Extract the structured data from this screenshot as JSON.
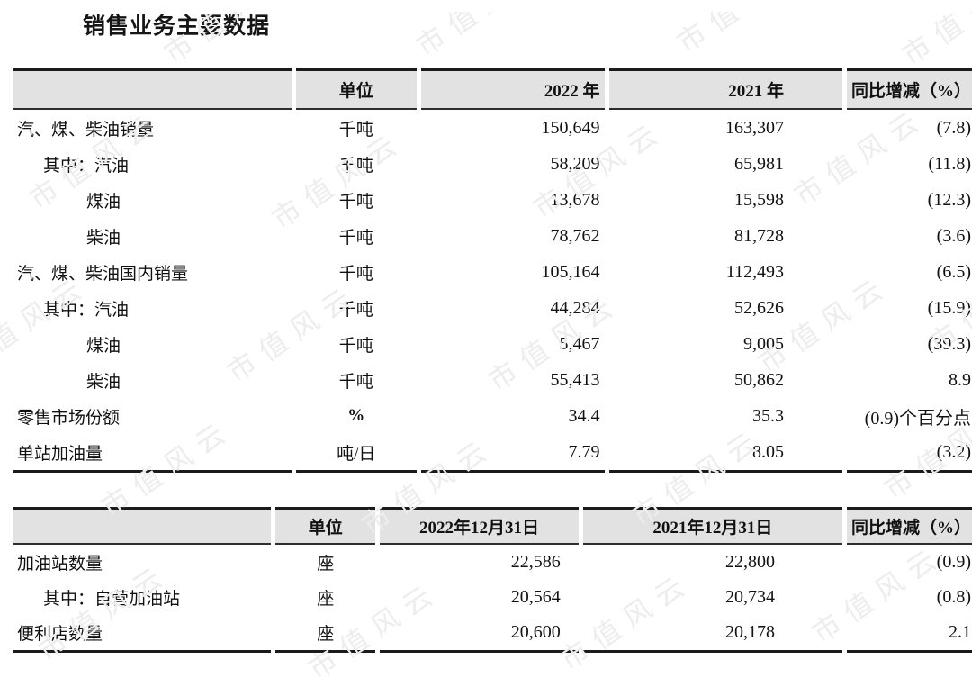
{
  "title": "销售业务主要数据",
  "watermark": {
    "text": "市值风云",
    "color": "#ededed"
  },
  "colors": {
    "header_bg": "#e2e2e2",
    "border": "#1b1b1b"
  },
  "table1": {
    "headers": [
      "",
      "单位",
      "2022 年",
      "2021 年",
      "同比增减（%）"
    ],
    "rows": [
      {
        "label": "汽、煤、柴油销量",
        "indent": 0,
        "unit": "千吨",
        "unit_bold": false,
        "values": [
          "150,649",
          "163,307",
          "(7.8)"
        ]
      },
      {
        "label": "其中：汽油",
        "indent": 1,
        "unit": "千吨",
        "unit_bold": false,
        "values": [
          "58,209",
          "65,981",
          "(11.8)"
        ]
      },
      {
        "label": "煤油",
        "indent": 2,
        "unit": "千吨",
        "unit_bold": false,
        "values": [
          "13,678",
          "15,598",
          "(12.3)"
        ]
      },
      {
        "label": "柴油",
        "indent": 2,
        "unit": "千吨",
        "unit_bold": false,
        "values": [
          "78,762",
          "81,728",
          "(3.6)"
        ]
      },
      {
        "label": "汽、煤、柴油国内销量",
        "indent": 0,
        "unit": "千吨",
        "unit_bold": false,
        "values": [
          "105,164",
          "112,493",
          "(6.5)"
        ]
      },
      {
        "label": "其中：汽油",
        "indent": 1,
        "unit": "千吨",
        "unit_bold": false,
        "values": [
          "44,284",
          "52,626",
          "(15.9)"
        ]
      },
      {
        "label": "煤油",
        "indent": 2,
        "unit": "千吨",
        "unit_bold": false,
        "values": [
          "5,467",
          "9,005",
          "(39.3)"
        ]
      },
      {
        "label": "柴油",
        "indent": 2,
        "unit": "千吨",
        "unit_bold": false,
        "values": [
          "55,413",
          "50,862",
          "8.9"
        ]
      },
      {
        "label": "零售市场份额",
        "indent": 0,
        "unit": "%",
        "unit_bold": true,
        "values": [
          "34.4",
          "35.3",
          "(0.9)个百分点"
        ]
      },
      {
        "label": "单站加油量",
        "indent": 0,
        "unit": "吨/日",
        "unit_bold": false,
        "values": [
          "7.79",
          "8.05",
          "(3.2)"
        ]
      }
    ]
  },
  "table2": {
    "headers": [
      "",
      "单位",
      "2022年12月31日",
      "2021年12月31日",
      "同比增减（%）"
    ],
    "rows": [
      {
        "label": "加油站数量",
        "indent": 0,
        "unit": "座",
        "unit_bold": false,
        "values": [
          "22,586",
          "22,800",
          "(0.9)"
        ]
      },
      {
        "label": "其中：自营加油站",
        "indent": 1,
        "unit": "座",
        "unit_bold": false,
        "values": [
          "20,564",
          "20,734",
          "(0.8)"
        ]
      },
      {
        "label": "便利店数量",
        "indent": 0,
        "unit": "座",
        "unit_bold": false,
        "values": [
          "20,600",
          "20,178",
          "2.1"
        ]
      }
    ]
  }
}
